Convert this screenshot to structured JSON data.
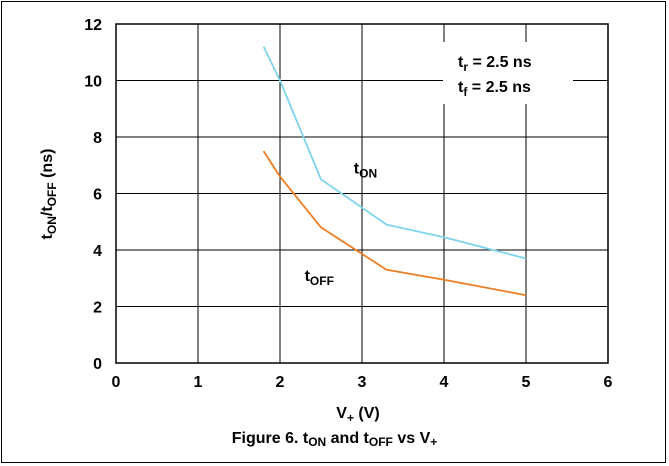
{
  "chart_data": {
    "type": "line",
    "xlabel": {
      "main": "V",
      "sub": "+",
      "suffix": " (V)"
    },
    "ylabel": {
      "p1": "t",
      "s1": "ON",
      "p2": "/t",
      "s2": "OFF",
      "p3": " (ns)"
    },
    "xlim": [
      0,
      6
    ],
    "ylim": [
      0,
      12
    ],
    "x_ticks": [
      0,
      1,
      2,
      3,
      4,
      5,
      6
    ],
    "y_ticks": [
      0,
      2,
      4,
      6,
      8,
      10,
      12
    ],
    "grid": true,
    "series": [
      {
        "name": "tON",
        "color": "#7fd4ee",
        "x": [
          1.8,
          2.0,
          2.5,
          3.3,
          4.0,
          5.0
        ],
        "y": [
          11.2,
          10.0,
          6.5,
          4.9,
          4.45,
          3.7
        ]
      },
      {
        "name": "tOFF",
        "color": "#ef7d22",
        "x": [
          1.8,
          2.0,
          2.5,
          3.3,
          4.0,
          5.0
        ],
        "y": [
          7.5,
          6.6,
          4.8,
          3.3,
          2.95,
          2.4
        ]
      }
    ],
    "series_labels": [
      {
        "main": "t",
        "sub": "ON",
        "x": 2.9,
        "y": 6.7
      },
      {
        "main": "t",
        "sub": "OFF",
        "x": 2.3,
        "y": 2.9
      }
    ],
    "annotation": {
      "line1": {
        "main": "t",
        "sub": "r",
        "rest": " = 2.5 ns"
      },
      "line2": {
        "main": "t",
        "sub": "f",
        "rest": " = 2.5 ns"
      }
    }
  },
  "caption": {
    "p1": "Figure 6. t",
    "s1": "ON",
    "p2": " and t",
    "s2": "OFF",
    "p3": " vs V",
    "s3": "+"
  }
}
